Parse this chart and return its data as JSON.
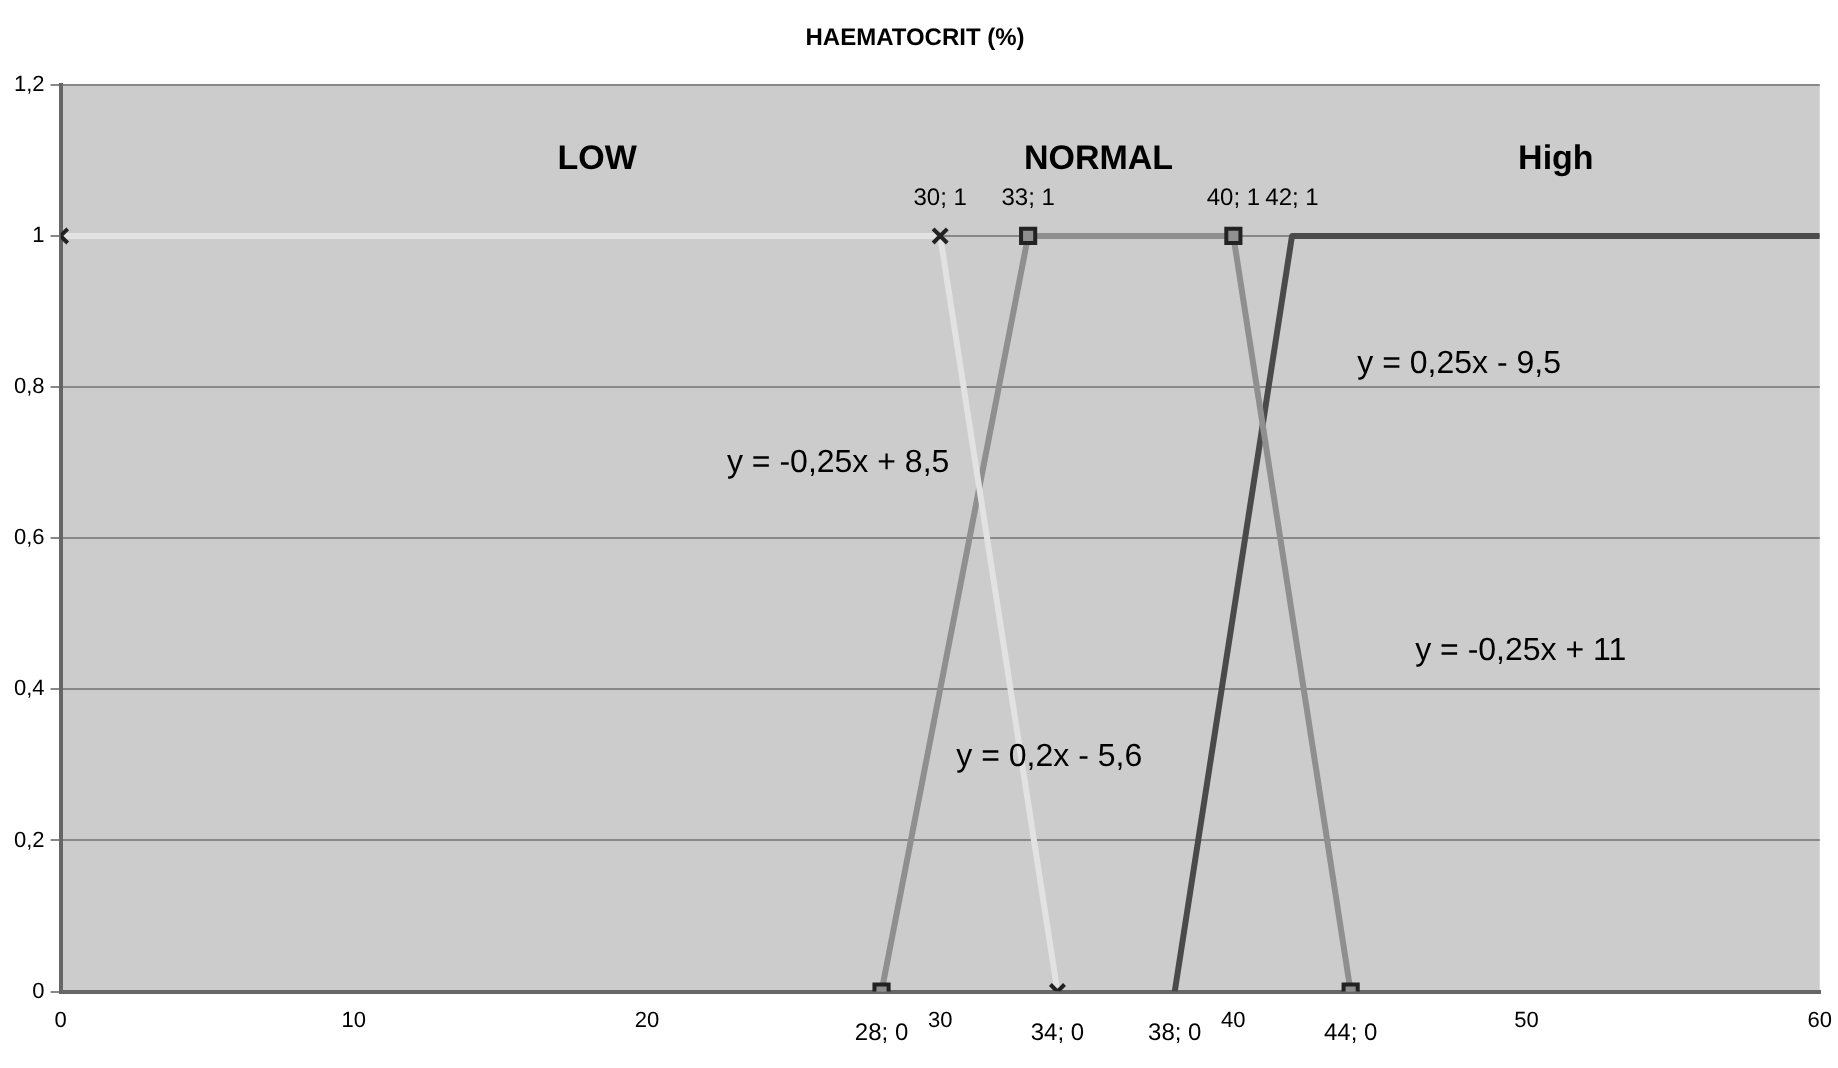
{
  "chart_data": {
    "type": "line",
    "title": "HAEMATOCRIT (%)",
    "xlim": [
      0,
      60
    ],
    "xticks": [
      0,
      10,
      20,
      30,
      40,
      50,
      60
    ],
    "ylim": [
      0,
      1.2
    ],
    "yticks": [
      {
        "value": 0,
        "label": "0"
      },
      {
        "value": 0.2,
        "label": "0,2"
      },
      {
        "value": 0.4,
        "label": "0,4"
      },
      {
        "value": 0.6,
        "label": "0,6"
      },
      {
        "value": 0.8,
        "label": "0,8"
      },
      {
        "value": 1,
        "label": "1"
      },
      {
        "value": 1.2,
        "label": "1,2"
      }
    ],
    "grid": "y",
    "legend": false,
    "series": [
      {
        "color": "#e2e2e2",
        "marker": "cross",
        "x": [
          0,
          30,
          34
        ],
        "values": [
          1,
          1,
          0
        ],
        "value_labels": [
          null,
          "30; 1",
          "34; 0"
        ]
      },
      {
        "color": "#8f8f8f",
        "marker": "square",
        "x": [
          28,
          33,
          40,
          44
        ],
        "values": [
          0,
          1,
          1,
          0
        ],
        "value_labels": [
          "28; 0",
          "33; 1",
          "40; 1",
          "44; 0"
        ]
      },
      {
        "color": "#4a4a4a",
        "marker": "none",
        "x": [
          38,
          42,
          50,
          60
        ],
        "values": [
          0,
          1,
          1,
          1
        ],
        "value_labels": [
          "38; 0",
          "42; 1",
          null,
          null
        ]
      }
    ],
    "annotations": [
      "LOW",
      "NORMAL",
      "High",
      "y = -0,25x + 8,5",
      "y = 0,25x - 9,5",
      "y = -0,25x + 11",
      "y = 0,2x - 5,6"
    ]
  }
}
